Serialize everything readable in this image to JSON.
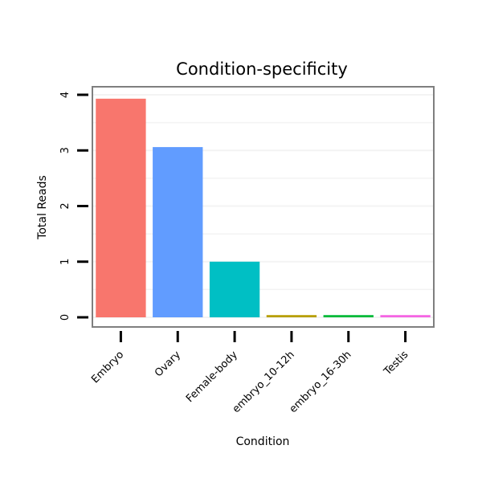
{
  "chart_data": {
    "type": "bar",
    "title": "Condition-specificity",
    "xlabel": "Condition",
    "ylabel": "Total Reads",
    "categories": [
      "Embryo",
      "Ovary",
      "Female-body",
      "embryo_10-12h",
      "embryo_16-30h",
      "Testis"
    ],
    "values": [
      3.93,
      3.06,
      1.0,
      0.04,
      0.04,
      0.04
    ],
    "colors": [
      "#F8766D",
      "#619CFF",
      "#00BFC4",
      "#B79F00",
      "#00BA38",
      "#F564E3"
    ],
    "ylim": [
      0,
      4
    ],
    "yticks": [
      "0",
      "1",
      "2",
      "3",
      "4"
    ],
    "grid": true,
    "legend": "none"
  }
}
